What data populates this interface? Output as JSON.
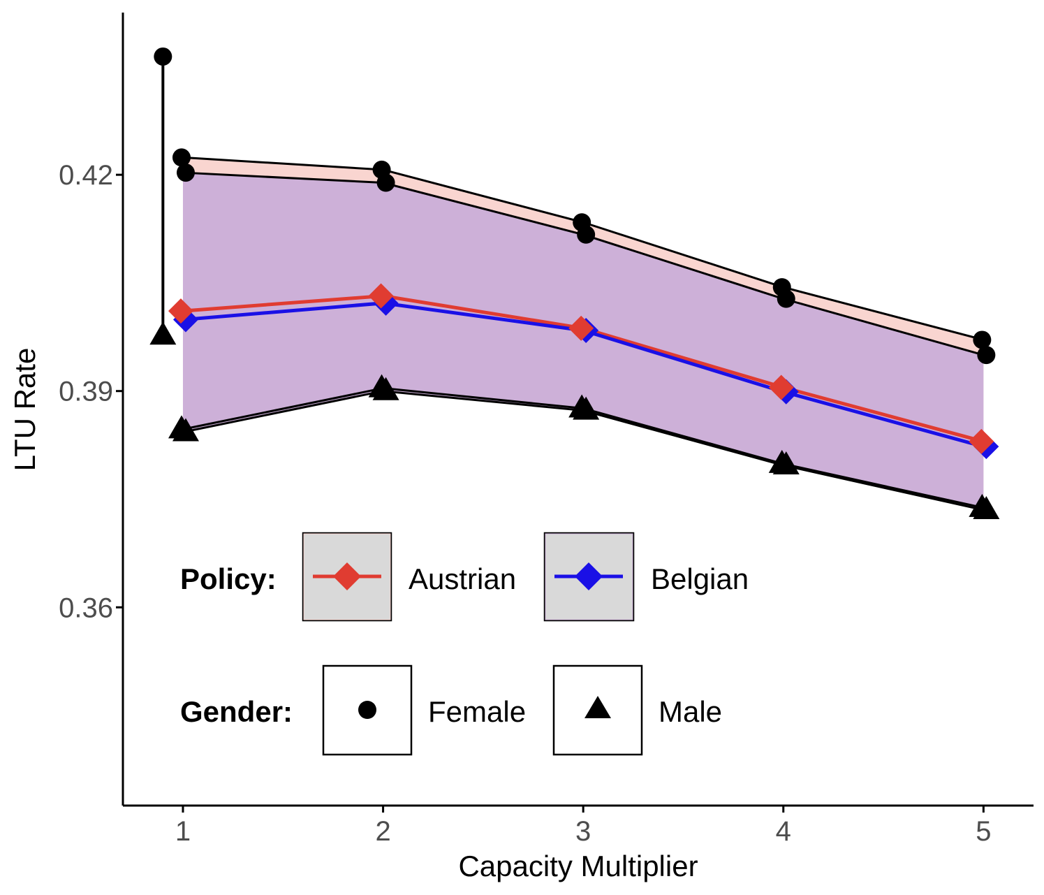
{
  "chart_data": {
    "type": "line",
    "xlabel": "Capacity Multiplier",
    "ylabel": "LTU Rate",
    "x": [
      1,
      2,
      3,
      4,
      5
    ],
    "x_ticks": [
      "1",
      "2",
      "3",
      "4",
      "5"
    ],
    "y_ticks": [
      "0.36",
      "0.39",
      "0.42"
    ],
    "ylim": [
      0.3325,
      0.4425
    ],
    "xlim": [
      0.7,
      5.25
    ],
    "grid": false,
    "series": [
      {
        "name": "Austrian",
        "color": "#e03c31",
        "marker": "diamond",
        "values": [
          0.4011,
          0.4032,
          0.3987,
          0.3905,
          0.383
        ]
      },
      {
        "name": "Belgian",
        "color": "#1a10e6",
        "marker": "diamond",
        "values": [
          0.3999,
          0.4022,
          0.3984,
          0.3899,
          0.3823
        ]
      }
    ],
    "ribbons": [
      {
        "policy": "Austrian",
        "fill": "#f9d5d0",
        "female": [
          0.4224,
          0.4207,
          0.4134,
          0.4044,
          0.3971
        ],
        "male": [
          0.3847,
          0.3904,
          0.3876,
          0.3799,
          0.3738
        ]
      },
      {
        "policy": "Belgian",
        "fill": "#cdb0d8",
        "female": [
          0.4203,
          0.4189,
          0.4117,
          0.4028,
          0.395
        ],
        "male": [
          0.3843,
          0.39,
          0.3873,
          0.3797,
          0.3735
        ]
      }
    ],
    "reference_point": {
      "x": 0.9,
      "female": 0.4364,
      "male": 0.3977
    },
    "legend": {
      "placement": "inside-bottom-left",
      "policy_title": "Policy:",
      "policy_items": [
        "Austrian",
        "Belgian"
      ],
      "gender_title": "Gender:",
      "gender_items": [
        "Female",
        "Male"
      ],
      "gender_shapes": [
        "circle-icon",
        "triangle-icon"
      ]
    }
  }
}
